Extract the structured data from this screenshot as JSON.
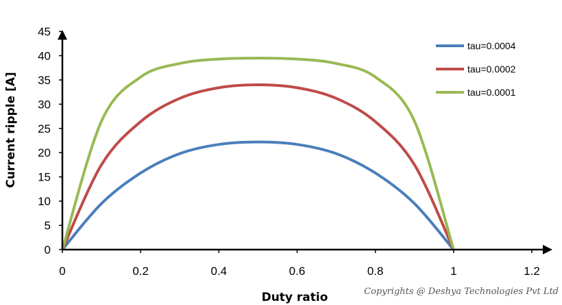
{
  "chart_data": {
    "type": "line",
    "title": "",
    "xlabel": "Duty ratio",
    "ylabel": "Current ripple [A]",
    "xlim": [
      0,
      1.2
    ],
    "ylim": [
      0,
      45
    ],
    "xticks": [
      "0",
      "0.2",
      "0.4",
      "0.6",
      "0.8",
      "1",
      "1.2"
    ],
    "yticks": [
      "0",
      "5",
      "10",
      "15",
      "20",
      "25",
      "30",
      "35",
      "40",
      "45"
    ],
    "grid": false,
    "legend_position": "top-right",
    "x": [
      0,
      0.1,
      0.2,
      0.3,
      0.4,
      0.5,
      0.6,
      0.7,
      0.8,
      0.9,
      1.0
    ],
    "series": [
      {
        "name": "tau=0.0004",
        "color": "#4a7ebb",
        "values": [
          0,
          9.5,
          15.8,
          19.8,
          21.7,
          22.2,
          21.7,
          19.8,
          15.8,
          9.5,
          0
        ]
      },
      {
        "name": "tau=0.0002",
        "color": "#be4b48",
        "values": [
          0,
          17.5,
          26.4,
          31.2,
          33.4,
          34.0,
          33.4,
          31.2,
          26.4,
          17.5,
          0
        ]
      },
      {
        "name": "tau=0.0001",
        "color": "#98b954",
        "values": [
          0,
          26.5,
          35.6,
          38.4,
          39.3,
          39.5,
          39.3,
          38.4,
          35.6,
          26.5,
          0
        ]
      }
    ]
  },
  "watermark": "Copyrights @ Deshya Technologies Pvt Ltd"
}
